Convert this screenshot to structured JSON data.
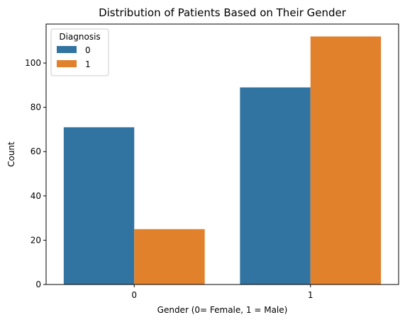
{
  "chart_data": {
    "type": "bar",
    "title": "Distribution of Patients Based on Their Gender",
    "xlabel": "Gender (0= Female, 1 = Male)",
    "ylabel": "Count",
    "categories": [
      "0",
      "1"
    ],
    "series": [
      {
        "name": "0",
        "values": [
          71,
          89
        ],
        "color": "#3274a1"
      },
      {
        "name": "1",
        "values": [
          25,
          112
        ],
        "color": "#e1812c"
      }
    ],
    "ylim": [
      0,
      117.6
    ],
    "yticks": [
      0,
      20,
      40,
      60,
      80,
      100
    ],
    "grid": false,
    "legend": {
      "title": "Diagnosis",
      "placement": "top-left"
    }
  }
}
